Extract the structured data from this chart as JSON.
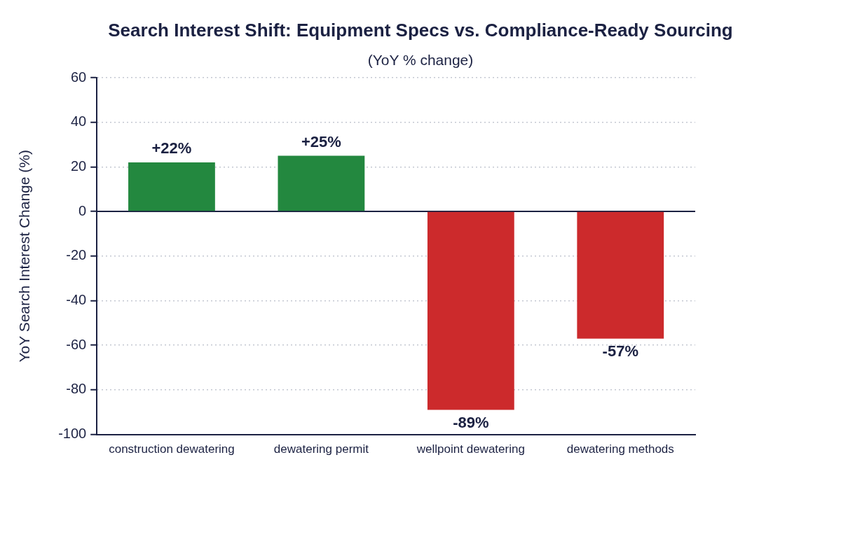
{
  "chart_data": {
    "type": "bar",
    "title": "Search Interest Shift: Equipment Specs vs. Compliance-Ready Sourcing",
    "subtitle": "(YoY % change)",
    "ylabel": "YoY Search Interest Change (%)",
    "categories": [
      "construction dewatering",
      "dewatering permit",
      "wellpoint dewatering",
      "dewatering methods"
    ],
    "values": [
      22,
      25,
      -89,
      -57
    ],
    "colors": [
      "#23883f",
      "#23883f",
      "#cc2a2c",
      "#cc2a2c"
    ],
    "value_labels": [
      "+22%",
      "+25%",
      "-89%",
      "-57%"
    ],
    "ylim": [
      -100,
      60
    ],
    "yticks": [
      -100,
      -80,
      -60,
      -40,
      -20,
      0,
      20,
      40,
      60
    ],
    "grid": "y"
  }
}
